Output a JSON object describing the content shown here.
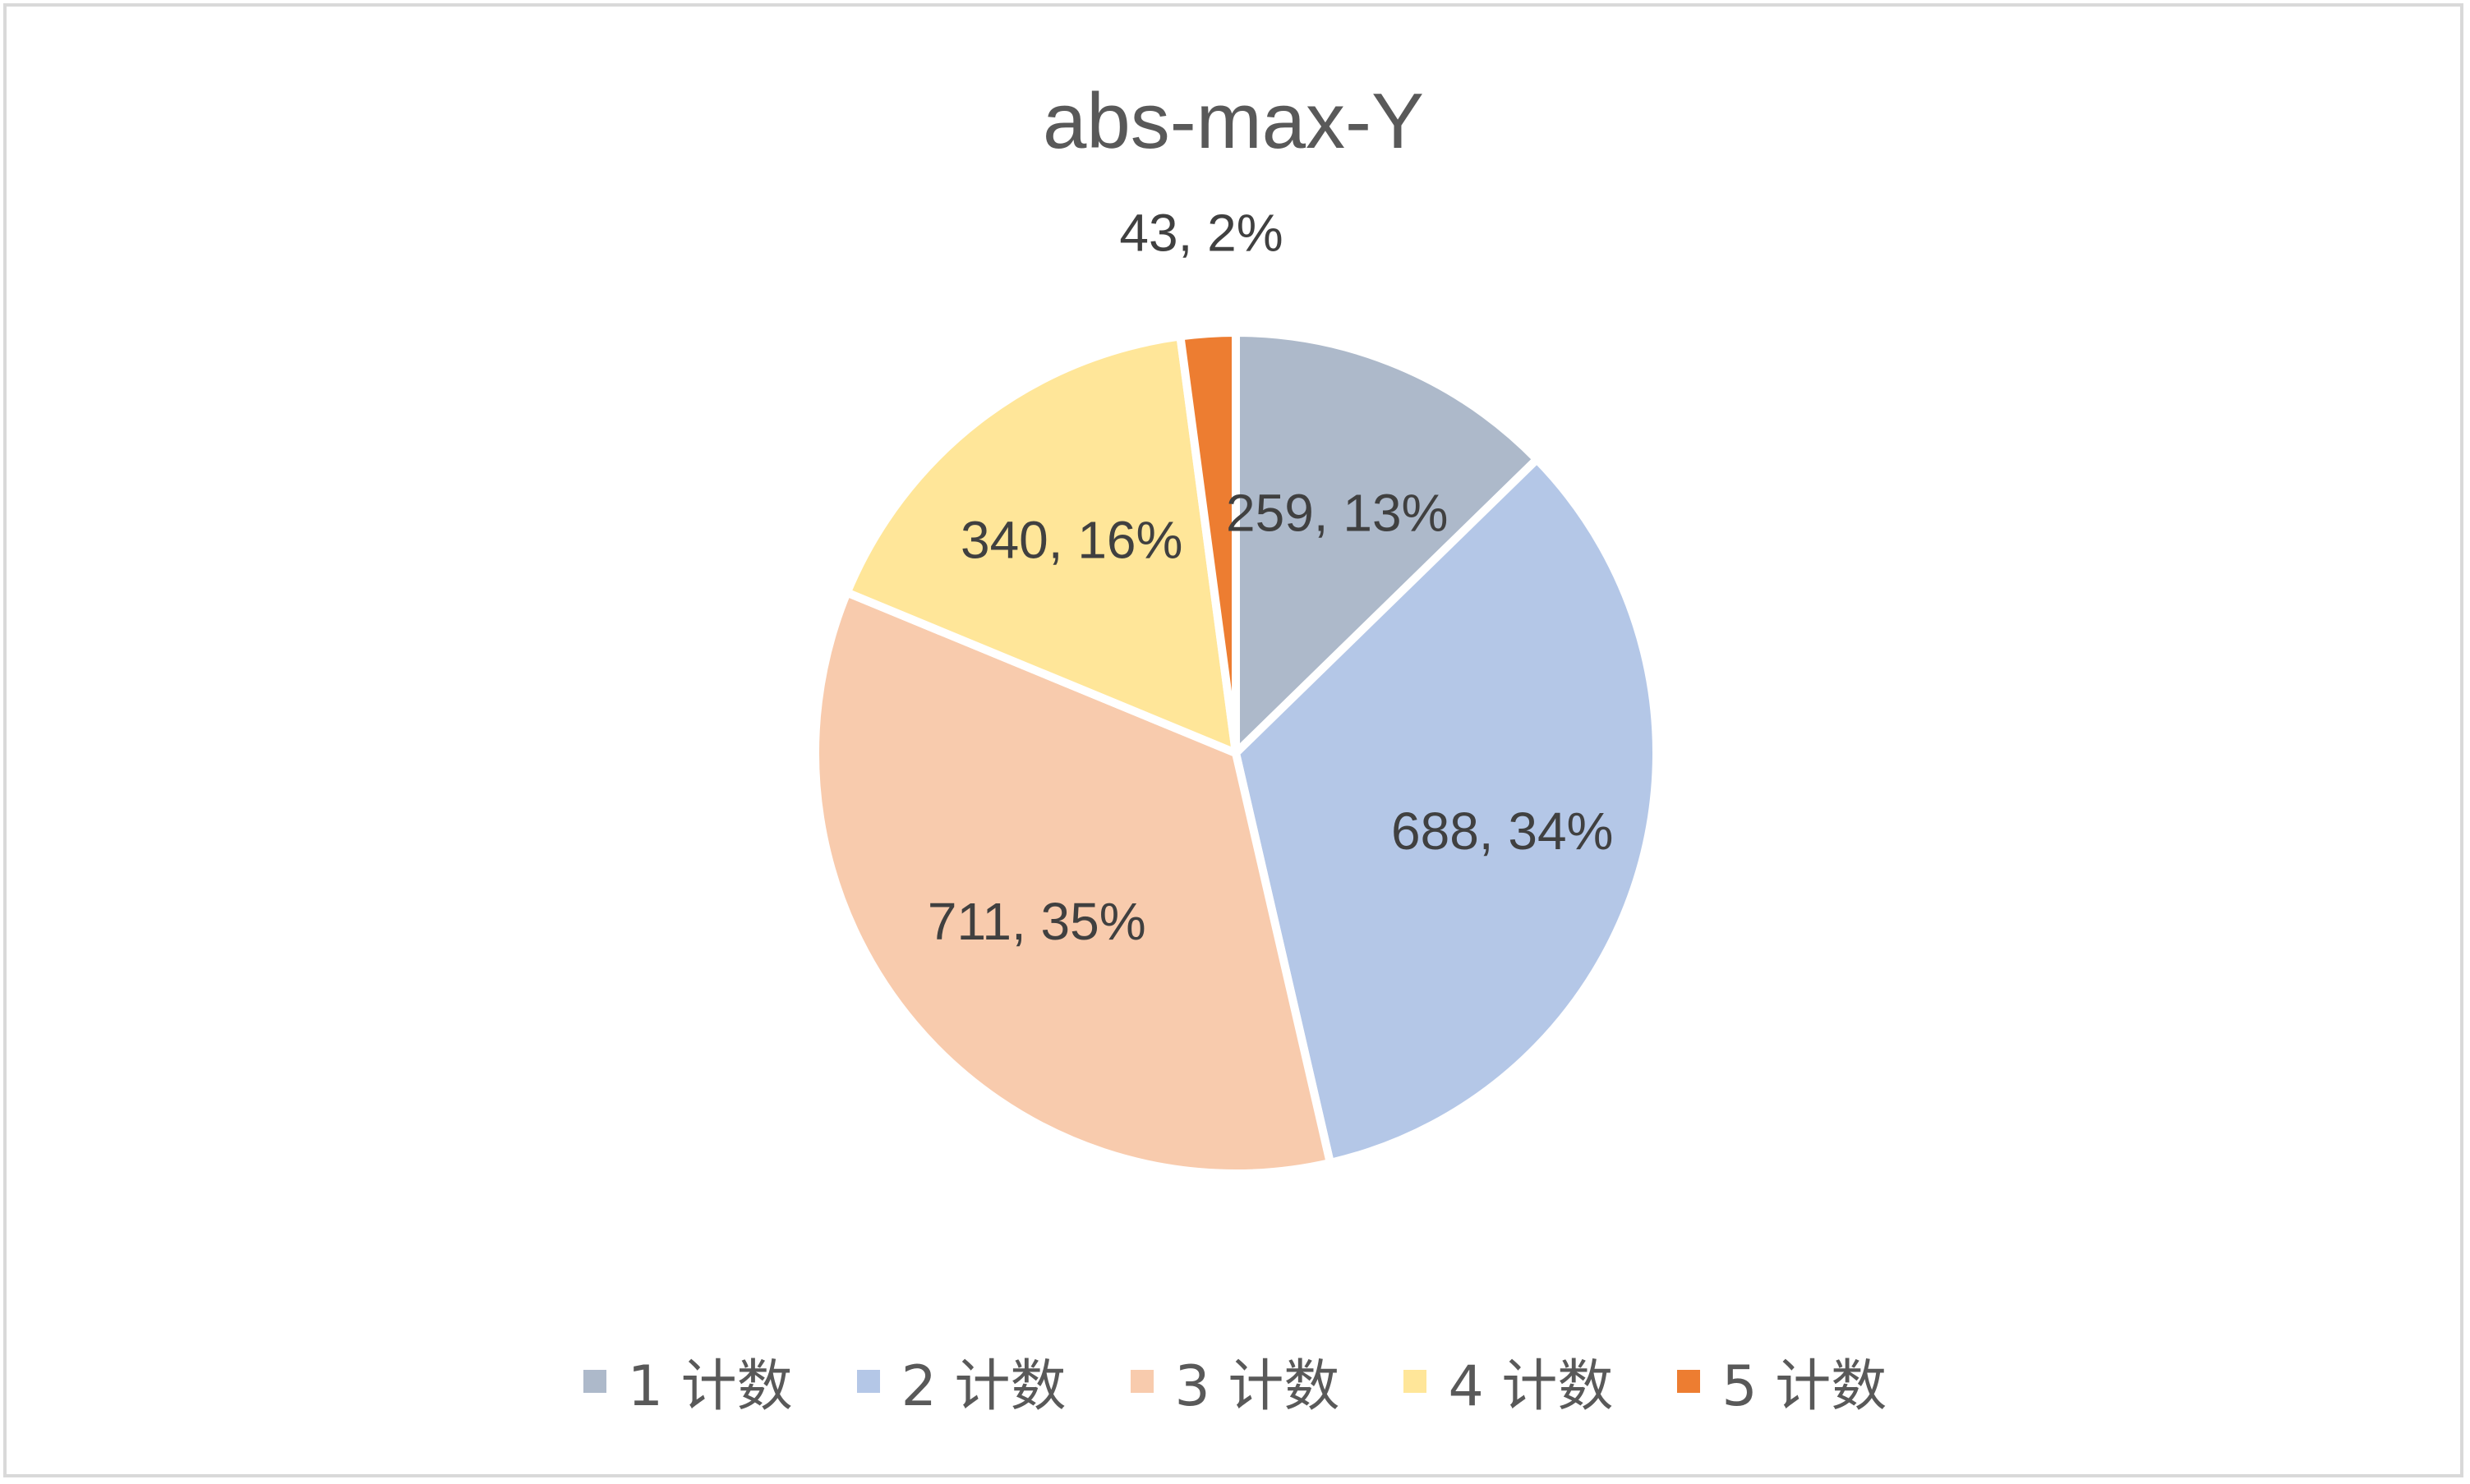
{
  "chart_data": {
    "type": "pie",
    "title": "abs-max-Y",
    "categories": [
      "1 计数",
      "2 计数",
      "3 计数",
      "4 计数",
      "5 计数"
    ],
    "values": [
      259,
      688,
      711,
      340,
      43
    ],
    "percent_labels": [
      "13%",
      "34%",
      "35%",
      "16%",
      "2%"
    ],
    "data_labels": [
      "259, 13%",
      "688, 34%",
      "711, 35%",
      "340, 16%",
      "43, 2%"
    ],
    "colors": [
      "#adb9ca",
      "#b4c7e7",
      "#f8cbad",
      "#ffe699",
      "#ed7d31"
    ],
    "legend_position": "bottom",
    "start_angle": "12 o'clock",
    "direction": "clockwise"
  }
}
